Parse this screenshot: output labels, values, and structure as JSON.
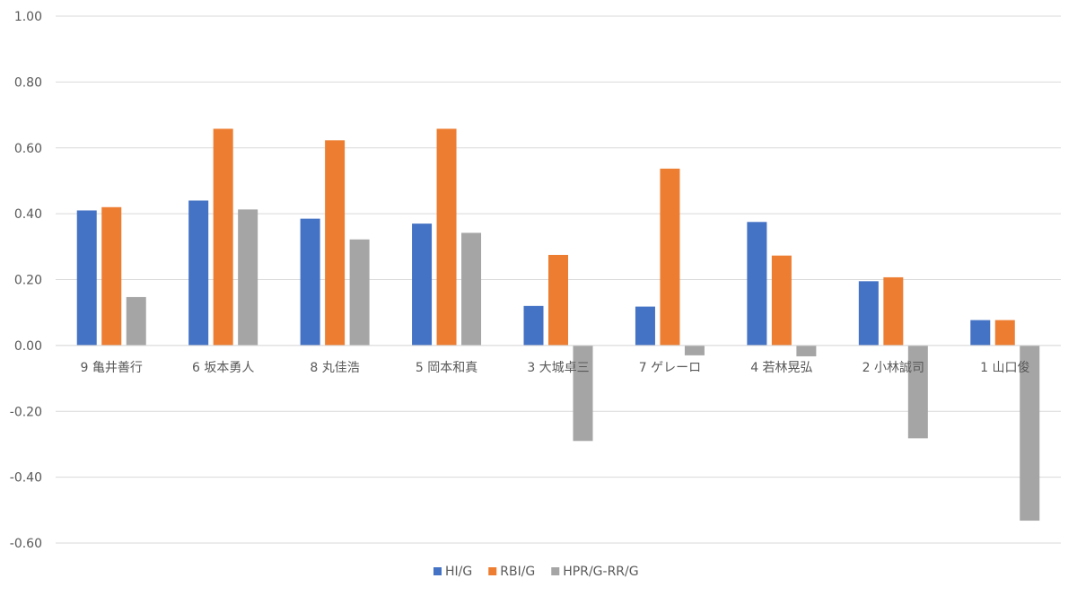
{
  "chart_data": {
    "type": "bar",
    "categories": [
      "9 亀井善行",
      "6 坂本勇人",
      "8 丸佳浩",
      "5 岡本和真",
      "3 大城卓三",
      "7 ゲレーロ",
      "4 若林晃弘",
      "2 小林誠司",
      "1 山口俊"
    ],
    "series": [
      {
        "name": "HI/G",
        "color": "#4472C4",
        "values": [
          0.41,
          0.44,
          0.385,
          0.37,
          0.12,
          0.118,
          0.375,
          0.195,
          0.077
        ]
      },
      {
        "name": "RBI/G",
        "color": "#ED7D31",
        "values": [
          0.42,
          0.658,
          0.623,
          0.658,
          0.275,
          0.537,
          0.273,
          0.207,
          0.077
        ]
      },
      {
        "name": "HPR/G-RR/G",
        "color": "#A5A5A5",
        "values": [
          0.147,
          0.413,
          0.322,
          0.342,
          -0.29,
          -0.03,
          -0.033,
          -0.282,
          -0.532
        ]
      }
    ],
    "yticks": [
      "1.00",
      "0.80",
      "0.60",
      "0.40",
      "0.20",
      "0.00",
      "-0.20",
      "-0.40",
      "-0.60"
    ],
    "ylim": [
      -0.6,
      1.0
    ],
    "grid": true,
    "legend_position": "bottom",
    "title": "",
    "xlabel": "",
    "ylabel": ""
  }
}
